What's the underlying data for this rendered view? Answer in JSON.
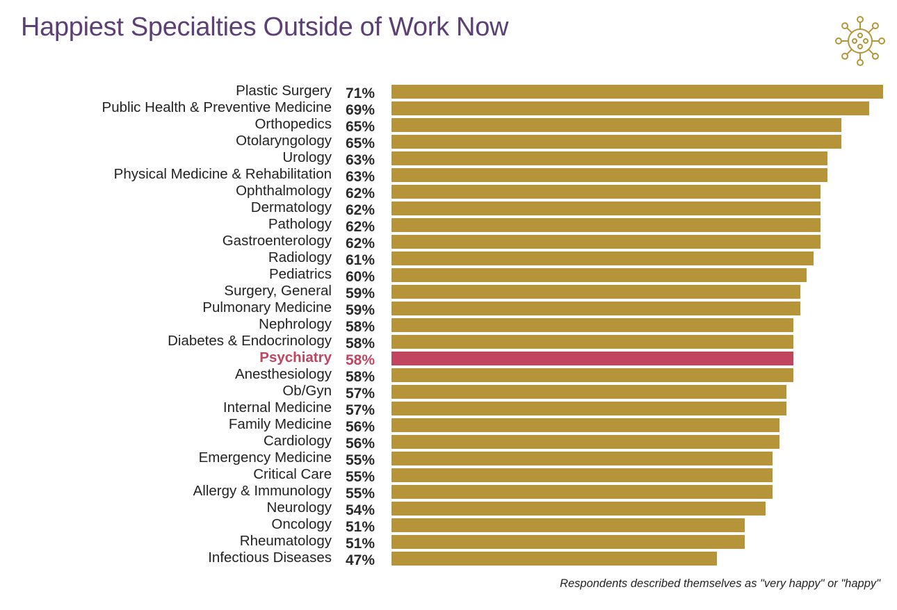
{
  "chart_data": {
    "type": "bar",
    "orientation": "horizontal",
    "title": "Happiest Specialties Outside of Work Now",
    "footnote": "Respondents described themselves as \"very happy\" or \"happy\"",
    "unit": "%",
    "categories": [
      "Plastic Surgery",
      "Public Health & Preventive Medicine",
      "Orthopedics",
      "Otolaryngology",
      "Urology",
      "Physical Medicine & Rehabilitation",
      "Ophthalmology",
      "Dermatology",
      "Pathology",
      "Gastroenterology",
      "Radiology",
      "Pediatrics",
      "Surgery, General",
      "Pulmonary Medicine",
      "Nephrology",
      "Diabetes & Endocrinology",
      "Psychiatry",
      "Anesthesiology",
      "Ob/Gyn",
      "Internal Medicine",
      "Family Medicine",
      "Cardiology",
      "Emergency Medicine",
      "Critical Care",
      "Allergy & Immunology",
      "Neurology",
      "Oncology",
      "Rheumatology",
      "Infectious Diseases"
    ],
    "values": [
      71,
      69,
      65,
      65,
      63,
      63,
      62,
      62,
      62,
      62,
      61,
      60,
      59,
      59,
      58,
      58,
      58,
      58,
      57,
      57,
      56,
      56,
      55,
      55,
      55,
      54,
      51,
      51,
      47
    ],
    "labels": [
      "71%",
      "69%",
      "65%",
      "65%",
      "63%",
      "63%",
      "62%",
      "62%",
      "62%",
      "62%",
      "61%",
      "60%",
      "59%",
      "59%",
      "58%",
      "58%",
      "58%",
      "58%",
      "57%",
      "57%",
      "56%",
      "56%",
      "55%",
      "55%",
      "55%",
      "54%",
      "51%",
      "51%",
      "47%"
    ],
    "highlight": "Psychiatry",
    "xlim": [
      0,
      71
    ],
    "grid": false,
    "colors": {
      "bar": "#B5943A",
      "highlight": "#C0465F",
      "title": "#5B3F75"
    }
  },
  "icon": "virus-icon"
}
